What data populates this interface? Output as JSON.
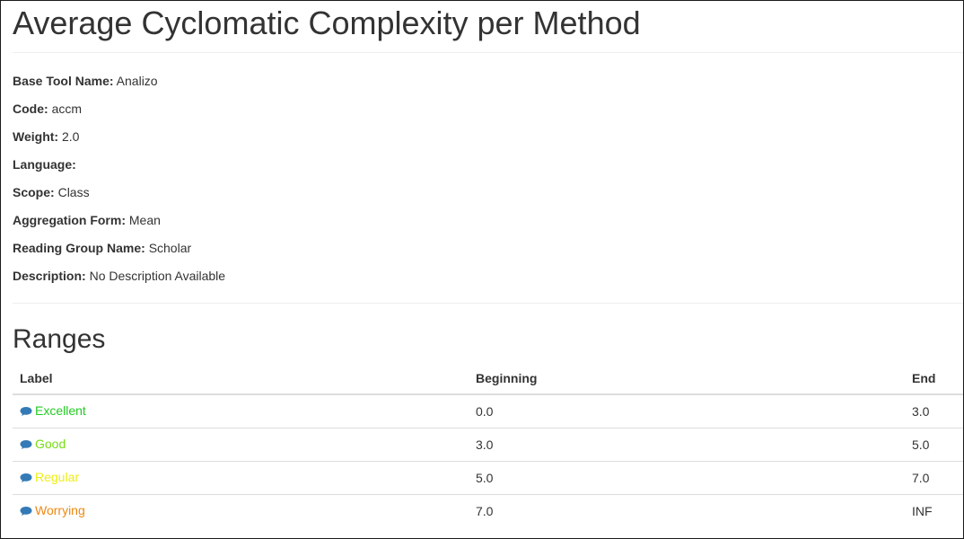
{
  "page": {
    "title": "Average Cyclomatic Complexity per Method"
  },
  "properties": [
    {
      "key": "Base Tool Name:",
      "value": "Analizo"
    },
    {
      "key": "Code:",
      "value": "accm"
    },
    {
      "key": "Weight:",
      "value": "2.0"
    },
    {
      "key": "Language:",
      "value": ""
    },
    {
      "key": "Scope:",
      "value": "Class"
    },
    {
      "key": "Aggregation Form:",
      "value": "Mean"
    },
    {
      "key": "Reading Group Name:",
      "value": "Scholar"
    },
    {
      "key": "Description:",
      "value": "No Description Available"
    }
  ],
  "ranges": {
    "title": "Ranges",
    "headers": {
      "label": "Label",
      "beginning": "Beginning",
      "end": "End"
    },
    "rows": [
      {
        "label": "Excellent",
        "color": "#22cc22",
        "beginning": "0.0",
        "end": "3.0",
        "icon": "comment-icon"
      },
      {
        "label": "Good",
        "color": "#77dd11",
        "beginning": "3.0",
        "end": "5.0",
        "icon": "comment-icon"
      },
      {
        "label": "Regular",
        "color": "#eeee11",
        "beginning": "5.0",
        "end": "7.0",
        "icon": "comment-icon"
      },
      {
        "label": "Worrying",
        "color": "#ee8811",
        "beginning": "7.0",
        "end": "INF",
        "icon": "comment-icon"
      }
    ]
  },
  "colors": {
    "icon": "#337ab7",
    "text": "#333333"
  }
}
